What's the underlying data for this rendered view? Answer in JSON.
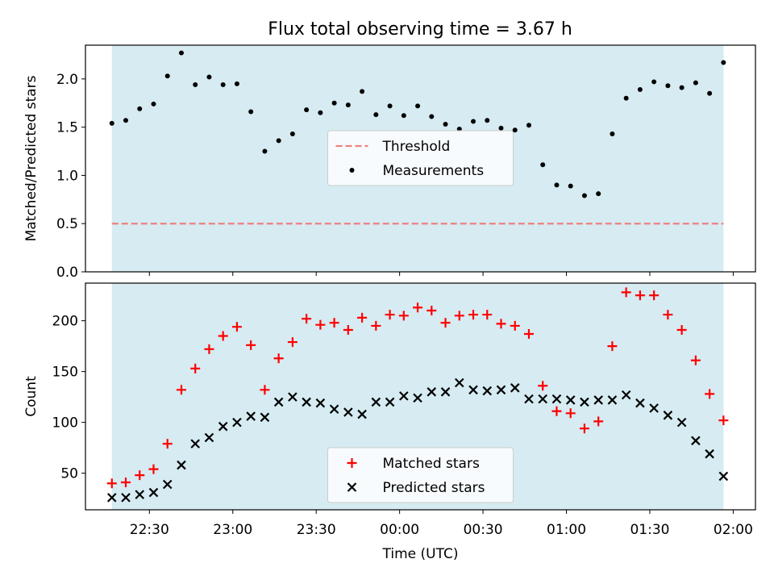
{
  "title": "Flux total observing time = 3.67 h",
  "colors": {
    "shade": "#add8e6",
    "threshold": "#f08080",
    "measurement": "#000000",
    "matched": "#ff0000",
    "predicted": "#000000"
  },
  "chart_data": [
    {
      "type": "scatter",
      "panel": "top",
      "ylabel": "Matched/Predicted stars",
      "xlabel": "",
      "ylim": [
        0,
        2.35
      ],
      "yticks": [
        0.0,
        0.5,
        1.0,
        1.5,
        2.0
      ],
      "ytick_labels": [
        "0.0",
        "0.5",
        "1.0",
        "1.5",
        "2.0"
      ],
      "x_unit": "minutes after 22:00 UTC",
      "xlim": [
        7,
        248
      ],
      "shaded_span": [
        16.5,
        236.5
      ],
      "legend_placement": "center",
      "threshold": {
        "name": "Threshold",
        "value": 0.5
      },
      "series": [
        {
          "name": "Measurements",
          "x": [
            16.5,
            21.5,
            26.5,
            31.5,
            36.5,
            41.5,
            46.5,
            51.5,
            56.5,
            61.5,
            66.5,
            71.5,
            76.5,
            81.5,
            86.5,
            91.5,
            96.5,
            101.5,
            106.5,
            111.5,
            116.5,
            121.5,
            126.5,
            131.5,
            136.5,
            141.5,
            146.5,
            151.5,
            156.5,
            161.5,
            166.5,
            171.5,
            176.5,
            181.5,
            186.5,
            191.5,
            196.5,
            201.5,
            206.5,
            211.5,
            216.5,
            221.5,
            226.5,
            231.5,
            236.5
          ],
          "y": [
            1.54,
            1.57,
            1.69,
            1.74,
            2.03,
            2.27,
            1.94,
            2.02,
            1.94,
            1.95,
            1.66,
            1.25,
            1.36,
            1.43,
            1.68,
            1.65,
            1.75,
            1.73,
            1.87,
            1.63,
            1.72,
            1.62,
            1.72,
            1.61,
            1.53,
            1.48,
            1.56,
            1.57,
            1.49,
            1.47,
            1.52,
            1.11,
            0.9,
            0.89,
            0.79,
            0.81,
            1.43,
            1.8,
            1.89,
            1.97,
            1.93,
            1.91,
            1.96,
            1.85,
            2.17
          ]
        }
      ]
    },
    {
      "type": "scatter",
      "panel": "bottom",
      "ylabel": "Count",
      "xlabel": "Time (UTC)",
      "ylim": [
        14,
        237
      ],
      "yticks": [
        50,
        100,
        150,
        200
      ],
      "ytick_labels": [
        "50",
        "100",
        "150",
        "200"
      ],
      "x_unit": "minutes after 22:00 UTC",
      "xlim": [
        7,
        248
      ],
      "xticks": [
        30,
        60,
        90,
        120,
        150,
        180,
        210,
        240
      ],
      "xtick_labels": [
        "22:30",
        "23:00",
        "23:30",
        "00:00",
        "00:30",
        "01:00",
        "01:30",
        "02:00"
      ],
      "shaded_span": [
        16.5,
        236.5
      ],
      "legend_placement": "lower center",
      "series": [
        {
          "name": "Matched stars",
          "marker": "+",
          "x": [
            16.5,
            21.5,
            26.5,
            31.5,
            36.5,
            41.5,
            46.5,
            51.5,
            56.5,
            61.5,
            66.5,
            71.5,
            76.5,
            81.5,
            86.5,
            91.5,
            96.5,
            101.5,
            106.5,
            111.5,
            116.5,
            121.5,
            126.5,
            131.5,
            136.5,
            141.5,
            146.5,
            151.5,
            156.5,
            161.5,
            166.5,
            171.5,
            176.5,
            181.5,
            186.5,
            191.5,
            196.5,
            201.5,
            206.5,
            211.5,
            216.5,
            221.5,
            226.5,
            231.5,
            236.5
          ],
          "y": [
            40,
            41,
            48,
            54,
            79,
            132,
            153,
            172,
            185,
            194,
            176,
            132,
            163,
            179,
            202,
            196,
            198,
            191,
            203,
            195,
            206,
            205,
            213,
            210,
            198,
            205,
            206,
            206,
            197,
            195,
            187,
            136,
            111,
            109,
            94,
            101,
            175,
            228,
            225,
            225,
            206,
            191,
            161,
            128,
            102
          ]
        },
        {
          "name": "Predicted stars",
          "marker": "x",
          "x": [
            16.5,
            21.5,
            26.5,
            31.5,
            36.5,
            41.5,
            46.5,
            51.5,
            56.5,
            61.5,
            66.5,
            71.5,
            76.5,
            81.5,
            86.5,
            91.5,
            96.5,
            101.5,
            106.5,
            111.5,
            116.5,
            121.5,
            126.5,
            131.5,
            136.5,
            141.5,
            146.5,
            151.5,
            156.5,
            161.5,
            166.5,
            171.5,
            176.5,
            181.5,
            186.5,
            191.5,
            196.5,
            201.5,
            206.5,
            211.5,
            216.5,
            221.5,
            226.5,
            231.5,
            236.5
          ],
          "y": [
            26,
            26,
            29,
            31,
            39,
            58,
            79,
            85,
            96,
            100,
            106,
            105,
            120,
            125,
            120,
            119,
            113,
            110,
            108,
            120,
            120,
            126,
            124,
            130,
            130,
            139,
            132,
            131,
            132,
            134,
            123,
            123,
            123,
            122,
            120,
            122,
            122,
            127,
            119,
            114,
            107,
            100,
            82,
            69,
            47
          ]
        }
      ]
    }
  ]
}
